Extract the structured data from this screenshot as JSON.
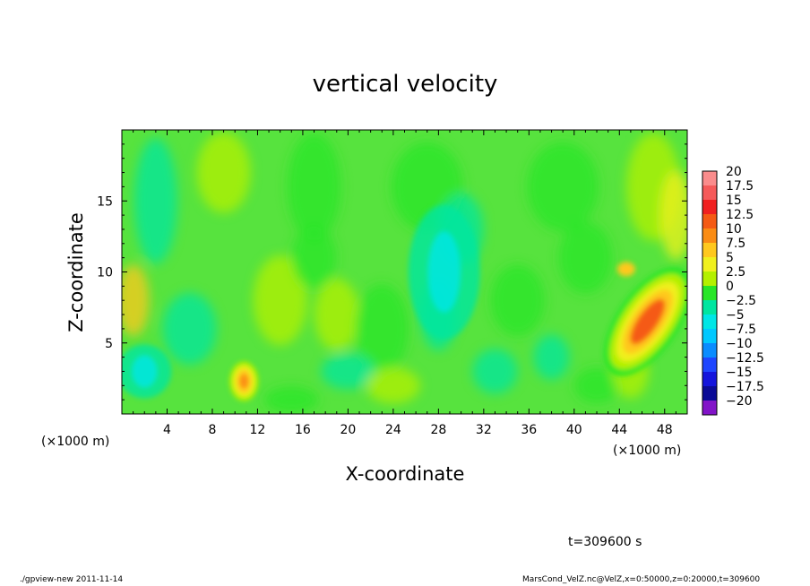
{
  "chart_data": {
    "type": "heatmap",
    "title": "vertical velocity",
    "xlabel": "X-coordinate",
    "ylabel": "Z-coordinate",
    "x_unit_label": "(×1000 m)",
    "x_unit_label_right": "(×1000 m)",
    "xlim": [
      0,
      50
    ],
    "ylim": [
      0,
      20
    ],
    "x_ticks": [
      4,
      8,
      12,
      16,
      20,
      24,
      28,
      32,
      36,
      40,
      44,
      48
    ],
    "y_ticks": [
      5,
      10,
      15
    ],
    "colorbar": {
      "labels": [
        "20",
        "17.5",
        "15",
        "12.5",
        "10",
        "7.5",
        "5",
        "2.5",
        "0",
        "−2.5",
        "−5",
        "−7.5",
        "−10",
        "−12.5",
        "−15",
        "−17.5",
        "−20"
      ],
      "colors": [
        "#fa8c8c",
        "#f55a5a",
        "#f02020",
        "#f55a14",
        "#fa8c14",
        "#ffc81e",
        "#f0f01e",
        "#b4f000",
        "#28e628",
        "#00e6a0",
        "#00e6e6",
        "#00c8ff",
        "#0a8cff",
        "#1e46ff",
        "#1414dc",
        "#0a0a96",
        "#8214c8"
      ],
      "range": [
        -20,
        20
      ]
    },
    "features": [
      {
        "name": "updraft",
        "x": 46.5,
        "z": 6.5,
        "value": 11
      },
      {
        "name": "updraft",
        "x": 10.8,
        "z": 2.3,
        "value": 9
      },
      {
        "name": "downdraft",
        "x": 28.5,
        "z": 10,
        "value": -5
      },
      {
        "name": "downdraft",
        "x": 2,
        "z": 3,
        "value": -4
      }
    ],
    "annotation": "t=309600 s"
  },
  "footer": {
    "left": "./gpview-new   2011-11-14",
    "right": "MarsCond_VelZ.nc@VelZ,x=0:50000,z=0:20000,t=309600"
  }
}
